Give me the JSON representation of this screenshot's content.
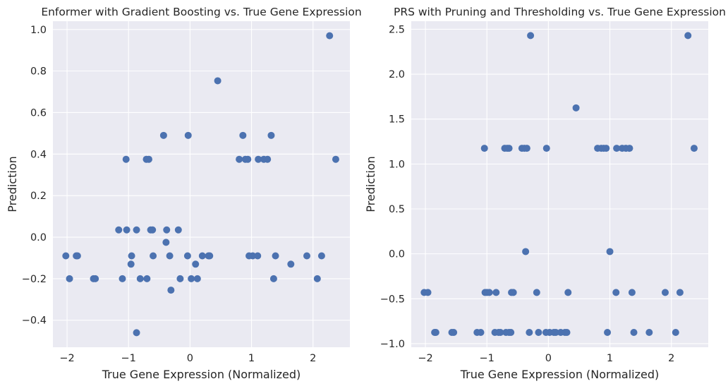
{
  "chart_data": [
    {
      "type": "scatter",
      "title": "Enformer with Gradient Boosting vs. True Gene Expression",
      "xlabel": "True Gene Expression (Normalized)",
      "ylabel": "Prediction",
      "xlim": [
        -2.23,
        2.6
      ],
      "ylim": [
        -0.53,
        1.04
      ],
      "xticks": [
        -2,
        -1,
        0,
        1,
        2
      ],
      "xtick_labels": [
        "−2",
        "−1",
        "0",
        "1",
        "2"
      ],
      "yticks": [
        -0.4,
        -0.2,
        0.0,
        0.2,
        0.4,
        0.6,
        0.8,
        1.0
      ],
      "ytick_labels": [
        "−0.4",
        "−0.2",
        "0.0",
        "0.2",
        "0.4",
        "0.6",
        "0.8",
        "1.0"
      ],
      "grid": true,
      "color": "#4c72b0",
      "points": [
        [
          -2.02,
          -0.09
        ],
        [
          -1.96,
          -0.2
        ],
        [
          -1.85,
          -0.09
        ],
        [
          -1.83,
          -0.09
        ],
        [
          -1.57,
          -0.2
        ],
        [
          -1.54,
          -0.2
        ],
        [
          -1.16,
          0.035
        ],
        [
          -1.1,
          -0.2
        ],
        [
          -1.04,
          0.375
        ],
        [
          -1.03,
          0.035
        ],
        [
          -0.96,
          -0.13
        ],
        [
          -0.95,
          -0.09
        ],
        [
          -0.87,
          0.035
        ],
        [
          -0.87,
          -0.46
        ],
        [
          -0.81,
          -0.2
        ],
        [
          -0.71,
          0.375
        ],
        [
          -0.7,
          -0.2
        ],
        [
          -0.67,
          0.375
        ],
        [
          -0.64,
          0.035
        ],
        [
          -0.61,
          0.035
        ],
        [
          -0.6,
          -0.09
        ],
        [
          -0.43,
          0.49
        ],
        [
          -0.39,
          -0.025
        ],
        [
          -0.38,
          0.035
        ],
        [
          -0.33,
          -0.09
        ],
        [
          -0.31,
          -0.255
        ],
        [
          -0.19,
          0.035
        ],
        [
          -0.16,
          -0.2
        ],
        [
          -0.03,
          0.49
        ],
        [
          -0.04,
          -0.09
        ],
        [
          0.02,
          -0.2
        ],
        [
          0.09,
          -0.13
        ],
        [
          0.12,
          -0.2
        ],
        [
          0.2,
          -0.09
        ],
        [
          0.3,
          -0.09
        ],
        [
          0.32,
          -0.09
        ],
        [
          0.45,
          0.753
        ],
        [
          0.8,
          0.375
        ],
        [
          0.86,
          0.49
        ],
        [
          0.9,
          0.375
        ],
        [
          0.94,
          0.375
        ],
        [
          0.96,
          -0.09
        ],
        [
          1.02,
          -0.09
        ],
        [
          1.1,
          -0.09
        ],
        [
          1.11,
          0.375
        ],
        [
          1.2,
          0.375
        ],
        [
          1.26,
          0.375
        ],
        [
          1.32,
          0.49
        ],
        [
          1.36,
          -0.2
        ],
        [
          1.39,
          -0.09
        ],
        [
          1.64,
          -0.13
        ],
        [
          1.9,
          -0.09
        ],
        [
          2.07,
          -0.2
        ],
        [
          2.14,
          -0.09
        ],
        [
          2.27,
          0.97
        ],
        [
          2.37,
          0.375
        ]
      ]
    },
    {
      "type": "scatter",
      "title": "PRS with Pruning and Thresholding vs. True Gene Expression",
      "xlabel": "True Gene Expression (Normalized)",
      "ylabel": "Prediction",
      "xlim": [
        -2.23,
        2.6
      ],
      "ylim": [
        -1.04,
        2.59
      ],
      "xticks": [
        -2,
        -1,
        0,
        1,
        2
      ],
      "xtick_labels": [
        "−2",
        "−1",
        "0",
        "1",
        "2"
      ],
      "yticks": [
        -1.0,
        -0.5,
        0.0,
        0.5,
        1.0,
        1.5,
        2.0,
        2.5
      ],
      "ytick_labels": [
        "−1.0",
        "−0.5",
        "0.0",
        "0.5",
        "1.0",
        "1.5",
        "2.0",
        "2.5"
      ],
      "grid": true,
      "color": "#4c72b0",
      "points": [
        [
          -2.02,
          -0.43
        ],
        [
          -1.96,
          -0.43
        ],
        [
          -1.85,
          -0.875
        ],
        [
          -1.83,
          -0.875
        ],
        [
          -1.57,
          -0.875
        ],
        [
          -1.54,
          -0.875
        ],
        [
          -1.16,
          -0.875
        ],
        [
          -1.1,
          -0.875
        ],
        [
          -1.04,
          1.175
        ],
        [
          -1.03,
          -0.43
        ],
        [
          -1.0,
          -0.43
        ],
        [
          -0.96,
          -0.43
        ],
        [
          -0.87,
          -0.875
        ],
        [
          -0.85,
          -0.43
        ],
        [
          -0.81,
          -0.875
        ],
        [
          -0.78,
          -0.875
        ],
        [
          -0.71,
          1.175
        ],
        [
          -0.69,
          -0.875
        ],
        [
          -0.67,
          1.175
        ],
        [
          -0.64,
          1.175
        ],
        [
          -0.64,
          -0.875
        ],
        [
          -0.61,
          -0.875
        ],
        [
          -0.6,
          -0.43
        ],
        [
          -0.57,
          -0.43
        ],
        [
          -0.43,
          1.175
        ],
        [
          -0.39,
          1.175
        ],
        [
          -0.37,
          0.025
        ],
        [
          -0.35,
          1.175
        ],
        [
          -0.31,
          -0.875
        ],
        [
          -0.29,
          2.43
        ],
        [
          -0.19,
          -0.43
        ],
        [
          -0.16,
          -0.875
        ],
        [
          -0.03,
          1.175
        ],
        [
          -0.04,
          -0.875
        ],
        [
          0.02,
          -0.875
        ],
        [
          0.09,
          -0.875
        ],
        [
          0.12,
          -0.875
        ],
        [
          0.2,
          -0.875
        ],
        [
          0.27,
          -0.875
        ],
        [
          0.32,
          -0.43
        ],
        [
          0.3,
          -0.875
        ],
        [
          0.45,
          1.625
        ],
        [
          0.8,
          1.175
        ],
        [
          0.86,
          1.175
        ],
        [
          0.9,
          1.175
        ],
        [
          0.94,
          1.175
        ],
        [
          0.96,
          -0.875
        ],
        [
          1.0,
          0.025
        ],
        [
          1.1,
          -0.43
        ],
        [
          1.11,
          1.175
        ],
        [
          1.2,
          1.175
        ],
        [
          1.26,
          1.175
        ],
        [
          1.32,
          1.175
        ],
        [
          1.36,
          -0.43
        ],
        [
          1.39,
          -0.875
        ],
        [
          1.64,
          -0.875
        ],
        [
          1.9,
          -0.43
        ],
        [
          2.07,
          -0.875
        ],
        [
          2.14,
          -0.43
        ],
        [
          2.27,
          2.43
        ],
        [
          2.37,
          1.175
        ]
      ]
    }
  ]
}
